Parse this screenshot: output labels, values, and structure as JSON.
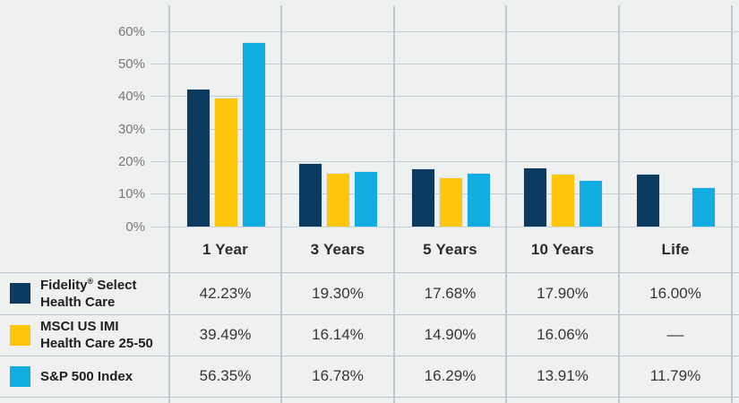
{
  "page": {
    "background_color": "#eff0f0"
  },
  "chart_data": {
    "type": "bar",
    "title": "",
    "categories": [
      "1 Year",
      "3 Years",
      "5 Years",
      "10 Years",
      "Life"
    ],
    "series": [
      {
        "name": "Fidelity® Select Health Care",
        "color": "#0d3b60",
        "values": [
          42.23,
          19.3,
          17.68,
          17.9,
          16.0
        ]
      },
      {
        "name": "MSCI US IMI Health Care 25-50",
        "color": "#ffc60b",
        "values": [
          39.49,
          16.14,
          14.9,
          16.06,
          null
        ]
      },
      {
        "name": "S&P 500 Index",
        "color": "#12ade0",
        "values": [
          56.35,
          16.78,
          16.29,
          13.91,
          11.79
        ]
      }
    ],
    "xlabel": "",
    "ylabel": "",
    "yticks": [
      0,
      10,
      20,
      30,
      40,
      50,
      60
    ],
    "ytick_suffix": "%",
    "ylim": [
      0,
      68
    ],
    "grid": true,
    "legend_position": "left column of table below chart"
  },
  "table": {
    "header": [
      "1 Year",
      "3 Years",
      "5 Years",
      "10 Years",
      "Life"
    ],
    "rows": [
      {
        "swatch_color": "#0d3b60",
        "label_lines": [
          "Fidelity® Select",
          "Health Care"
        ],
        "values": [
          "42.23%",
          "19.30%",
          "17.68%",
          "17.90%",
          "16.00%"
        ]
      },
      {
        "swatch_color": "#ffc60b",
        "label_lines": [
          "MSCI US IMI",
          "Health Care 25-50"
        ],
        "values": [
          "39.49%",
          "16.14%",
          "14.90%",
          "16.06%",
          "––"
        ]
      },
      {
        "swatch_color": "#12ade0",
        "label_lines": [
          "S&P 500 Index"
        ],
        "values": [
          "56.35%",
          "16.78%",
          "16.29%",
          "13.91%",
          "11.79%"
        ]
      }
    ]
  }
}
